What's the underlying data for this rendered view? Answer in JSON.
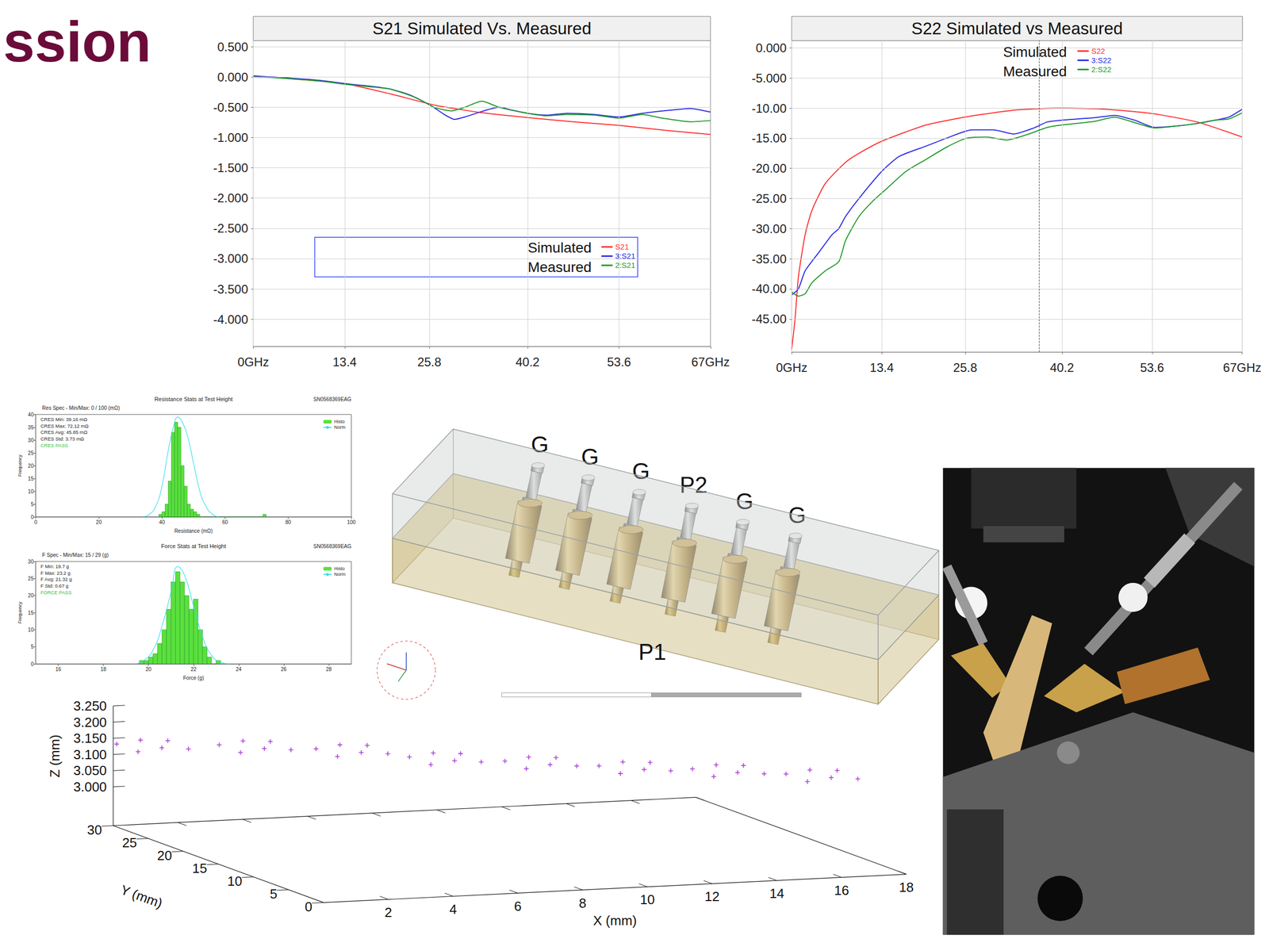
{
  "header": {
    "title": "ssion"
  },
  "chart_data": [
    {
      "type": "line",
      "title": "S21 Simulated Vs. Measured",
      "xlim": [
        0,
        67
      ],
      "xticks": [
        {
          "value": 0,
          "label": "0GHz"
        },
        13.4,
        25.8,
        40.2,
        53.6,
        {
          "value": 67,
          "label": "67GHz"
        }
      ],
      "ylim": [
        -4.45,
        0.6
      ],
      "yticks": [
        {
          "value": 0.5,
          "label": "0.500"
        },
        {
          "value": 0,
          "label": "0.000"
        },
        {
          "value": -0.5,
          "label": "-0.500"
        },
        {
          "value": -1,
          "label": "-1.000"
        },
        {
          "value": -1.5,
          "label": "-1.500"
        },
        {
          "value": -2,
          "label": "-2.000"
        },
        {
          "value": -2.5,
          "label": "-2.500"
        },
        {
          "value": -3,
          "label": "-3.000"
        },
        {
          "value": -3.5,
          "label": "-3.500"
        },
        {
          "value": -4,
          "label": "-4.000"
        }
      ],
      "grid": true,
      "legend": "bottom",
      "annotations": [
        "Simulated",
        "Measured"
      ],
      "series": [
        {
          "name": "S21",
          "color": "#ff3030",
          "x": [
            0,
            6.7,
            13.4,
            20.1,
            26.8,
            33.5,
            40.2,
            46.9,
            53.6,
            60.3,
            67
          ],
          "values": [
            0.02,
            -0.04,
            -0.11,
            -0.28,
            -0.47,
            -0.59,
            -0.67,
            -0.74,
            -0.8,
            -0.88,
            -0.95
          ]
        },
        {
          "name": "3:S21",
          "color": "#2a2ae6",
          "x": [
            0,
            3,
            6.7,
            10,
            13.4,
            17,
            20.1,
            23,
            26,
            28,
            29.5,
            31,
            33.5,
            36,
            38,
            40.2,
            43,
            46,
            50,
            53.6,
            57,
            61,
            64,
            67
          ],
          "values": [
            0.01,
            0.0,
            -0.03,
            -0.06,
            -0.11,
            -0.15,
            -0.2,
            -0.3,
            -0.47,
            -0.62,
            -0.7,
            -0.66,
            -0.57,
            -0.5,
            -0.55,
            -0.6,
            -0.63,
            -0.6,
            -0.62,
            -0.66,
            -0.6,
            -0.55,
            -0.52,
            -0.58
          ]
        },
        {
          "name": "2:S21",
          "color": "#1e9a2a",
          "x": [
            0,
            3,
            6.7,
            10,
            13.4,
            17,
            20.1,
            24,
            26.5,
            29,
            31,
            33.5,
            36,
            40.2,
            43,
            46,
            50,
            53.6,
            57,
            60,
            64,
            67
          ],
          "values": [
            0.0,
            -0.01,
            -0.04,
            -0.07,
            -0.12,
            -0.16,
            -0.2,
            -0.35,
            -0.5,
            -0.56,
            -0.5,
            -0.4,
            -0.5,
            -0.6,
            -0.64,
            -0.62,
            -0.63,
            -0.68,
            -0.62,
            -0.68,
            -0.74,
            -0.72
          ]
        }
      ]
    },
    {
      "type": "line",
      "title": "S22 Simulated vs Measured",
      "xlim": [
        0,
        67
      ],
      "xticks": [
        {
          "value": 0,
          "label": "0GHz"
        },
        13.4,
        25.8,
        40.2,
        53.6,
        {
          "value": 67,
          "label": "67GHz"
        }
      ],
      "ylim": [
        -50.5,
        1.2
      ],
      "yticks": [
        {
          "value": 0,
          "label": "0.000"
        },
        {
          "value": -5,
          "label": "-5.000"
        },
        {
          "value": -10,
          "label": "-10.00"
        },
        {
          "value": -15,
          "label": "-15.00"
        },
        {
          "value": -20,
          "label": "-20.00"
        },
        {
          "value": -25,
          "label": "-25.00"
        },
        {
          "value": -30,
          "label": "-30.00"
        },
        {
          "value": -35,
          "label": "-35.00"
        },
        {
          "value": -40,
          "label": "-40.00"
        },
        {
          "value": -45,
          "label": "-45.00"
        }
      ],
      "grid": true,
      "legend": "top",
      "annotations": [
        "Simulated",
        "Measured"
      ],
      "vlines": [
        36.8
      ],
      "series": [
        {
          "name": "S22",
          "color": "#ff3030",
          "x": [
            0,
            0.5,
            1,
            2,
            3,
            5,
            8,
            10,
            13.4,
            20,
            26.8,
            33.5,
            40.2,
            46.9,
            53.6,
            60.3,
            67
          ],
          "values": [
            -50,
            -45,
            -38,
            -31,
            -27,
            -22.5,
            -19,
            -17.5,
            -15.5,
            -12.8,
            -11.3,
            -10.3,
            -10,
            -10.2,
            -10.9,
            -12.3,
            -14.8
          ]
        },
        {
          "name": "3:S22",
          "color": "#2a2ae6",
          "x": [
            0,
            1,
            2,
            4,
            6,
            7,
            8,
            10,
            13.4,
            16,
            20,
            23,
            26.8,
            30,
            33,
            36,
            38,
            40.2,
            45,
            48,
            51,
            54,
            57,
            60,
            63,
            65,
            67
          ],
          "values": [
            -41,
            -40,
            -37,
            -34,
            -31,
            -30,
            -28,
            -25,
            -20.5,
            -18,
            -16.3,
            -15,
            -13.6,
            -13.6,
            -14.3,
            -13.3,
            -12.3,
            -12,
            -11.6,
            -11.2,
            -12,
            -13.2,
            -13,
            -12.6,
            -12,
            -11.5,
            -10.2
          ]
        },
        {
          "name": "2:S22",
          "color": "#1e9a2a",
          "x": [
            0,
            1,
            2,
            3,
            5,
            7,
            8,
            10,
            12,
            14,
            17,
            20,
            23,
            26,
            29,
            32,
            35,
            38,
            40.2,
            45,
            48,
            51,
            54,
            57,
            60,
            63,
            65,
            67
          ],
          "values": [
            -40.5,
            -41.2,
            -40.8,
            -39,
            -37,
            -35.5,
            -32,
            -28,
            -25.5,
            -23.5,
            -20.5,
            -18.5,
            -16.5,
            -15,
            -14.8,
            -15.3,
            -14.4,
            -13.2,
            -12.8,
            -12.2,
            -11.5,
            -12.4,
            -13.3,
            -13,
            -12.6,
            -12,
            -11.8,
            -10.8
          ]
        }
      ]
    },
    {
      "type": "histogram",
      "title": "Resistance Stats at Test Height",
      "subtitle": "Res Spec - Min/Max: 0 / 100 (mΩ)",
      "serial": "SN0568369EAG",
      "annotations": [
        "CRES Min: 39.16 mΩ",
        "CRES Max: 72.12 mΩ",
        "CRES Avg: 45.85 mΩ",
        "CRES Std: 3.73 mΩ"
      ],
      "status": "CRES PASS",
      "xlabel": "Resistance (mΩ)",
      "ylabel": "Frequency",
      "xlim": [
        0,
        100
      ],
      "xticks": [
        0,
        20,
        40,
        60,
        80,
        100
      ],
      "ylim": [
        0,
        40
      ],
      "yticks": [
        0,
        5,
        10,
        15,
        20,
        25,
        30,
        35,
        40
      ],
      "grid": false,
      "legend": "upper right",
      "series": [
        {
          "name": "Histo",
          "type": "bar",
          "color": "#5ae03e",
          "bins": [
            39,
            40,
            41,
            42,
            43,
            44,
            45,
            46,
            47,
            48,
            49,
            50,
            51,
            52,
            53,
            54,
            55,
            56,
            57,
            58,
            59,
            60,
            61,
            62,
            63,
            64,
            65,
            66,
            67,
            68,
            69,
            70,
            71,
            72,
            73
          ],
          "counts": [
            1,
            2,
            5,
            14,
            33,
            37,
            35,
            20,
            12,
            5,
            3,
            2,
            1,
            0,
            0,
            0,
            0,
            0,
            0,
            0,
            0,
            0,
            0,
            0,
            0,
            0,
            0,
            0,
            0,
            0,
            0,
            0,
            0,
            1
          ]
        },
        {
          "name": "Norm",
          "type": "line",
          "color": "#35dde6",
          "x": [
            34,
            36,
            38,
            40,
            42,
            44,
            45,
            46,
            48,
            50,
            52,
            54,
            56,
            58
          ],
          "values": [
            0,
            1,
            4,
            12,
            26,
            37,
            39,
            38,
            32,
            21,
            10,
            4,
            1,
            0
          ]
        }
      ]
    },
    {
      "type": "histogram",
      "title": "Force Stats at Test Height",
      "subtitle": "F Spec - Min/Max: 15 / 29 (g)",
      "serial": "SN0568369EAG",
      "annotations": [
        "F Min: 19.7 g",
        "F Max: 23.2 g",
        "F Avg: 21.32 g",
        "F Std: 0.67 g"
      ],
      "status": "FORCE PASS",
      "xlabel": "Force (g)",
      "ylabel": "Frequency",
      "xlim": [
        15,
        29
      ],
      "xticks": [
        16,
        18,
        20,
        22,
        24,
        26,
        28
      ],
      "ylim": [
        0,
        30
      ],
      "yticks": [
        0,
        5,
        10,
        15,
        20,
        25,
        30
      ],
      "grid": false,
      "legend": "upper right",
      "series": [
        {
          "name": "Histo",
          "type": "bar",
          "color": "#5ae03e",
          "bins": [
            19.6,
            19.8,
            20,
            20.2,
            20.4,
            20.6,
            20.8,
            21,
            21.2,
            21.4,
            21.6,
            21.8,
            22,
            22.2,
            22.4,
            22.6,
            22.8,
            23,
            23.2
          ],
          "counts": [
            1,
            1,
            2,
            3,
            6,
            10,
            16,
            24,
            27,
            24,
            20,
            16,
            19,
            10,
            5,
            2,
            0,
            1
          ]
        },
        {
          "name": "Norm",
          "type": "line",
          "color": "#35dde6",
          "x": [
            19.4,
            19.8,
            20.2,
            20.6,
            21,
            21.3,
            21.6,
            22,
            22.4,
            22.8,
            23.2,
            23.6
          ],
          "values": [
            0,
            1,
            4,
            11,
            21,
            28.5,
            26,
            17,
            8,
            2.5,
            0.5,
            0
          ]
        }
      ]
    },
    {
      "type": "scatter3d",
      "color": "#a01fd0",
      "marker": "plus",
      "grid": false,
      "xlabel": "X (mm)",
      "ylabel": "Y (mm)",
      "zlabel": "Z (mm)",
      "xlim": [
        0,
        18
      ],
      "xticks": [
        2,
        4,
        6,
        8,
        10,
        12,
        14,
        16,
        18
      ],
      "ylim": [
        0,
        30
      ],
      "yticks": [
        0,
        5,
        10,
        15,
        20,
        25,
        30
      ],
      "zlim": [
        2.88,
        3.25
      ],
      "zticks": [
        {
          "value": 3.0,
          "label": "3.000"
        },
        {
          "value": 3.05,
          "label": "3.050"
        },
        {
          "value": 3.1,
          "label": "3.100"
        },
        {
          "value": 3.15,
          "label": "3.150"
        },
        {
          "value": 3.2,
          "label": "3.200"
        },
        {
          "value": 3.25,
          "label": "3.250"
        }
      ],
      "x": [
        0.0,
        0.4,
        0.8,
        1.2,
        1.6,
        2.0,
        2.3,
        2.7,
        3.1,
        3.5,
        3.9,
        4.3,
        4.6,
        5.0,
        5.4,
        5.8,
        6.2,
        6.6,
        6.9,
        7.3,
        7.7,
        8.1,
        8.5,
        8.9,
        9.2,
        9.6,
        10.0,
        10.4,
        10.8,
        11.2,
        11.5,
        11.9,
        12.3,
        12.7,
        13.1,
        13.5,
        13.8,
        14.2,
        14.6,
        15.0,
        15.4,
        15.8,
        16.0,
        16.4,
        16.8,
        17.2,
        17.6,
        18.0
      ],
      "y": [
        29.5,
        28.3,
        29.8,
        28.6,
        29.6,
        28.5,
        25.5,
        24.3,
        25.8,
        24.6,
        25.6,
        24.5,
        22.3,
        21.1,
        22.6,
        21.4,
        22.4,
        21.3,
        19.6,
        18.4,
        19.9,
        18.7,
        19.7,
        18.6,
        16.6,
        15.4,
        16.9,
        15.7,
        16.7,
        15.6,
        13.8,
        12.6,
        14.1,
        12.9,
        13.9,
        12.8,
        11.1,
        9.9,
        11.4,
        10.2,
        11.2,
        10.1,
        7.9,
        6.7,
        8.2,
        7.0,
        8.0,
        6.9
      ],
      "z": [
        3.136,
        3.12,
        3.142,
        3.126,
        3.138,
        3.119,
        3.154,
        3.138,
        3.16,
        3.144,
        3.156,
        3.137,
        3.156,
        3.14,
        3.162,
        3.146,
        3.158,
        3.139,
        3.141,
        3.125,
        3.147,
        3.131,
        3.143,
        3.124,
        3.141,
        3.125,
        3.147,
        3.131,
        3.143,
        3.124,
        3.137,
        3.121,
        3.143,
        3.127,
        3.139,
        3.12,
        3.138,
        3.122,
        3.144,
        3.128,
        3.14,
        3.121,
        3.137,
        3.121,
        3.143,
        3.127,
        3.139,
        3.12
      ]
    }
  ],
  "diagram": {
    "pins": [
      "G",
      "G",
      "G",
      "P2",
      "G",
      "G"
    ],
    "port": "P1"
  }
}
